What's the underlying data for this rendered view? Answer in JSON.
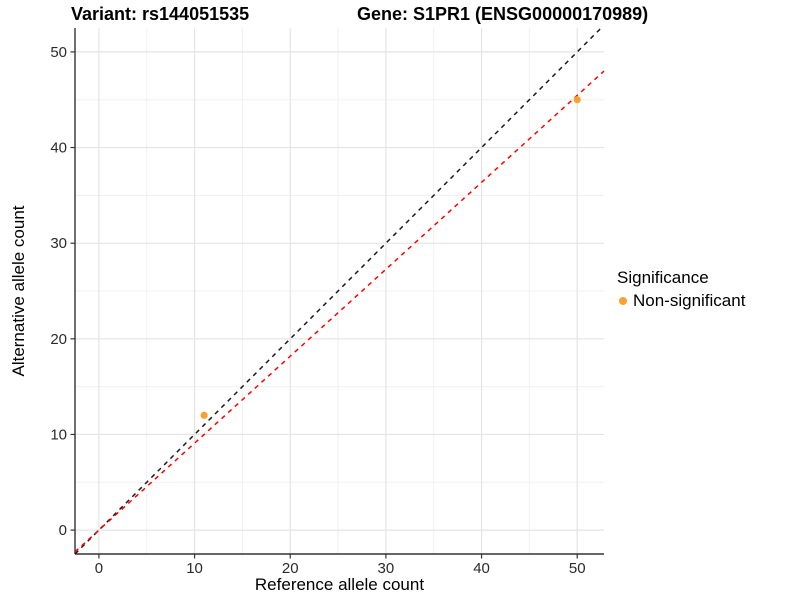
{
  "header": {
    "variant_title": "Variant: rs144051535",
    "gene_title": "Gene: S1PR1 (ENSG00000170989)"
  },
  "legend": {
    "title": "Significance",
    "items": [
      {
        "label": "Non-significant",
        "marker": "circle-icon",
        "color": "#F9A231"
      }
    ]
  },
  "chart_data": {
    "type": "scatter",
    "title_left": "Variant: rs144051535",
    "title_right": "Gene: S1PR1 (ENSG00000170989)",
    "xlabel": "Reference allele count",
    "ylabel": "Alternative allele count",
    "xlim": [
      -2.5,
      52.8
    ],
    "ylim": [
      -2.5,
      52.5
    ],
    "xticks": [
      0,
      10,
      20,
      30,
      40,
      50
    ],
    "yticks": [
      0,
      10,
      20,
      30,
      40,
      50
    ],
    "minor_gridlines_x": [
      5,
      15,
      25,
      35,
      45
    ],
    "minor_gridlines_y": [
      5,
      15,
      25,
      35,
      45
    ],
    "grid": true,
    "legend_position": "right",
    "series": [
      {
        "name": "Non-significant",
        "color": "#F9A231",
        "points": [
          {
            "x": 11,
            "y": 12
          },
          {
            "x": 50,
            "y": 45
          }
        ]
      }
    ],
    "reference_lines": [
      {
        "name": "identity-line",
        "slope": 1,
        "intercept": 0,
        "color": "#1A1A1A",
        "style": "dashed"
      },
      {
        "name": "fit-line",
        "slope": 0.909,
        "intercept": 0,
        "color": "#FF0000",
        "style": "dashed"
      }
    ],
    "style_colors": {
      "grid_major": "#E4E4E4",
      "grid_minor": "#F0F0F0",
      "axis_line": "#333333",
      "tick_text": "#2B2B2B",
      "background": "#FFFFFF"
    }
  }
}
